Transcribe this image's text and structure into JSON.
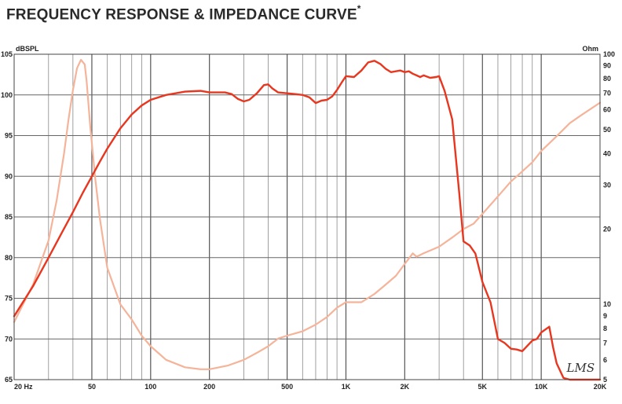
{
  "header": {
    "title": "FREQUENCY RESPONSE & IMPEDANCE CURVE",
    "title_mark": "*"
  },
  "chart_data": {
    "type": "line",
    "title": "FREQUENCY RESPONSE & IMPEDANCE CURVE",
    "x_scale": "log",
    "xlim": [
      20,
      20000
    ],
    "x_ticks": [
      {
        "value": 20,
        "label": "20 Hz"
      },
      {
        "value": 50,
        "label": "50"
      },
      {
        "value": 100,
        "label": "100"
      },
      {
        "value": 200,
        "label": "200"
      },
      {
        "value": 500,
        "label": "500"
      },
      {
        "value": 1000,
        "label": "1K"
      },
      {
        "value": 2000,
        "label": "2K"
      },
      {
        "value": 5000,
        "label": "5K"
      },
      {
        "value": 10000,
        "label": "10K"
      },
      {
        "value": 20000,
        "label": "20K"
      }
    ],
    "y_left": {
      "unit": "dBSPL",
      "lim": [
        65,
        105
      ],
      "ticks": [
        65,
        70,
        75,
        80,
        85,
        90,
        95,
        100,
        105
      ]
    },
    "y_right": {
      "unit": "Ohm",
      "scale": "log",
      "lim": [
        5,
        100
      ],
      "ticks": [
        5,
        6,
        7,
        8,
        9,
        10,
        20,
        30,
        40,
        50,
        60,
        70,
        80,
        90,
        100
      ]
    },
    "grid": true,
    "watermark": "LMS",
    "series": [
      {
        "color": "#e8361f",
        "axis": "left",
        "x": [
          20,
          25,
          30,
          35,
          40,
          45,
          50,
          55,
          60,
          70,
          80,
          90,
          100,
          120,
          150,
          180,
          200,
          240,
          260,
          280,
          300,
          320,
          350,
          380,
          400,
          420,
          450,
          500,
          550,
          600,
          650,
          700,
          750,
          800,
          850,
          900,
          950,
          1000,
          1100,
          1200,
          1300,
          1400,
          1500,
          1600,
          1700,
          1800,
          1900,
          2000,
          2100,
          2200,
          2300,
          2400,
          2500,
          2700,
          2900,
          3000,
          3200,
          3500,
          3800,
          4000,
          4300,
          4600,
          5000,
          5500,
          6000,
          6500,
          7000,
          7500,
          8000,
          9000,
          9500,
          10000,
          11000,
          11500,
          12000,
          13000,
          14000,
          16000,
          20000
        ],
        "y": [
          72.8,
          76.5,
          80.0,
          83.0,
          85.6,
          88.0,
          90.0,
          91.8,
          93.4,
          95.9,
          97.6,
          98.7,
          99.4,
          100.0,
          100.4,
          100.5,
          100.3,
          100.3,
          100.1,
          99.5,
          99.2,
          99.4,
          100.2,
          101.2,
          101.3,
          100.8,
          100.3,
          100.2,
          100.1,
          100.0,
          99.7,
          99.0,
          99.3,
          99.4,
          99.8,
          100.6,
          101.5,
          102.3,
          102.2,
          103.0,
          104.0,
          104.2,
          103.8,
          103.2,
          102.8,
          102.9,
          103.0,
          102.8,
          102.9,
          102.6,
          102.4,
          102.2,
          102.4,
          102.1,
          102.2,
          102.3,
          100.5,
          97.0,
          88.0,
          82.0,
          81.5,
          80.5,
          77.0,
          74.5,
          70.0,
          69.5,
          68.8,
          68.7,
          68.5,
          69.8,
          70.0,
          70.8,
          71.5,
          69.0,
          67.0,
          65.2,
          65.0,
          65.0,
          65.0
        ]
      },
      {
        "color": "#f5b49a",
        "axis": "right",
        "x": [
          20,
          25,
          30,
          33,
          36,
          38,
          40,
          42,
          44,
          46,
          47,
          49,
          52,
          55,
          60,
          70,
          80,
          90,
          100,
          120,
          150,
          180,
          200,
          250,
          300,
          350,
          400,
          450,
          500,
          600,
          700,
          800,
          900,
          1000,
          1200,
          1400,
          1600,
          1800,
          2000,
          2200,
          2300,
          2500,
          3000,
          3500,
          4000,
          4500,
          5000,
          6000,
          7000,
          8000,
          9000,
          10000,
          12000,
          14000,
          16000,
          20000
        ],
        "y": [
          8.5,
          12.0,
          18.0,
          26.0,
          40.0,
          55.0,
          72.0,
          88.0,
          95.0,
          91.0,
          78.0,
          52.0,
          32.0,
          22.0,
          14.0,
          10.0,
          8.7,
          7.5,
          6.8,
          6.0,
          5.6,
          5.5,
          5.5,
          5.7,
          6.0,
          6.4,
          6.8,
          7.3,
          7.5,
          7.8,
          8.3,
          8.9,
          9.7,
          10.2,
          10.2,
          11.0,
          12.0,
          13.0,
          14.5,
          16.0,
          15.5,
          16.0,
          17.0,
          18.5,
          20.0,
          21.0,
          23.0,
          27.0,
          31.0,
          34.0,
          37.0,
          41.0,
          47.0,
          53.0,
          57.0,
          64.0
        ]
      }
    ]
  }
}
